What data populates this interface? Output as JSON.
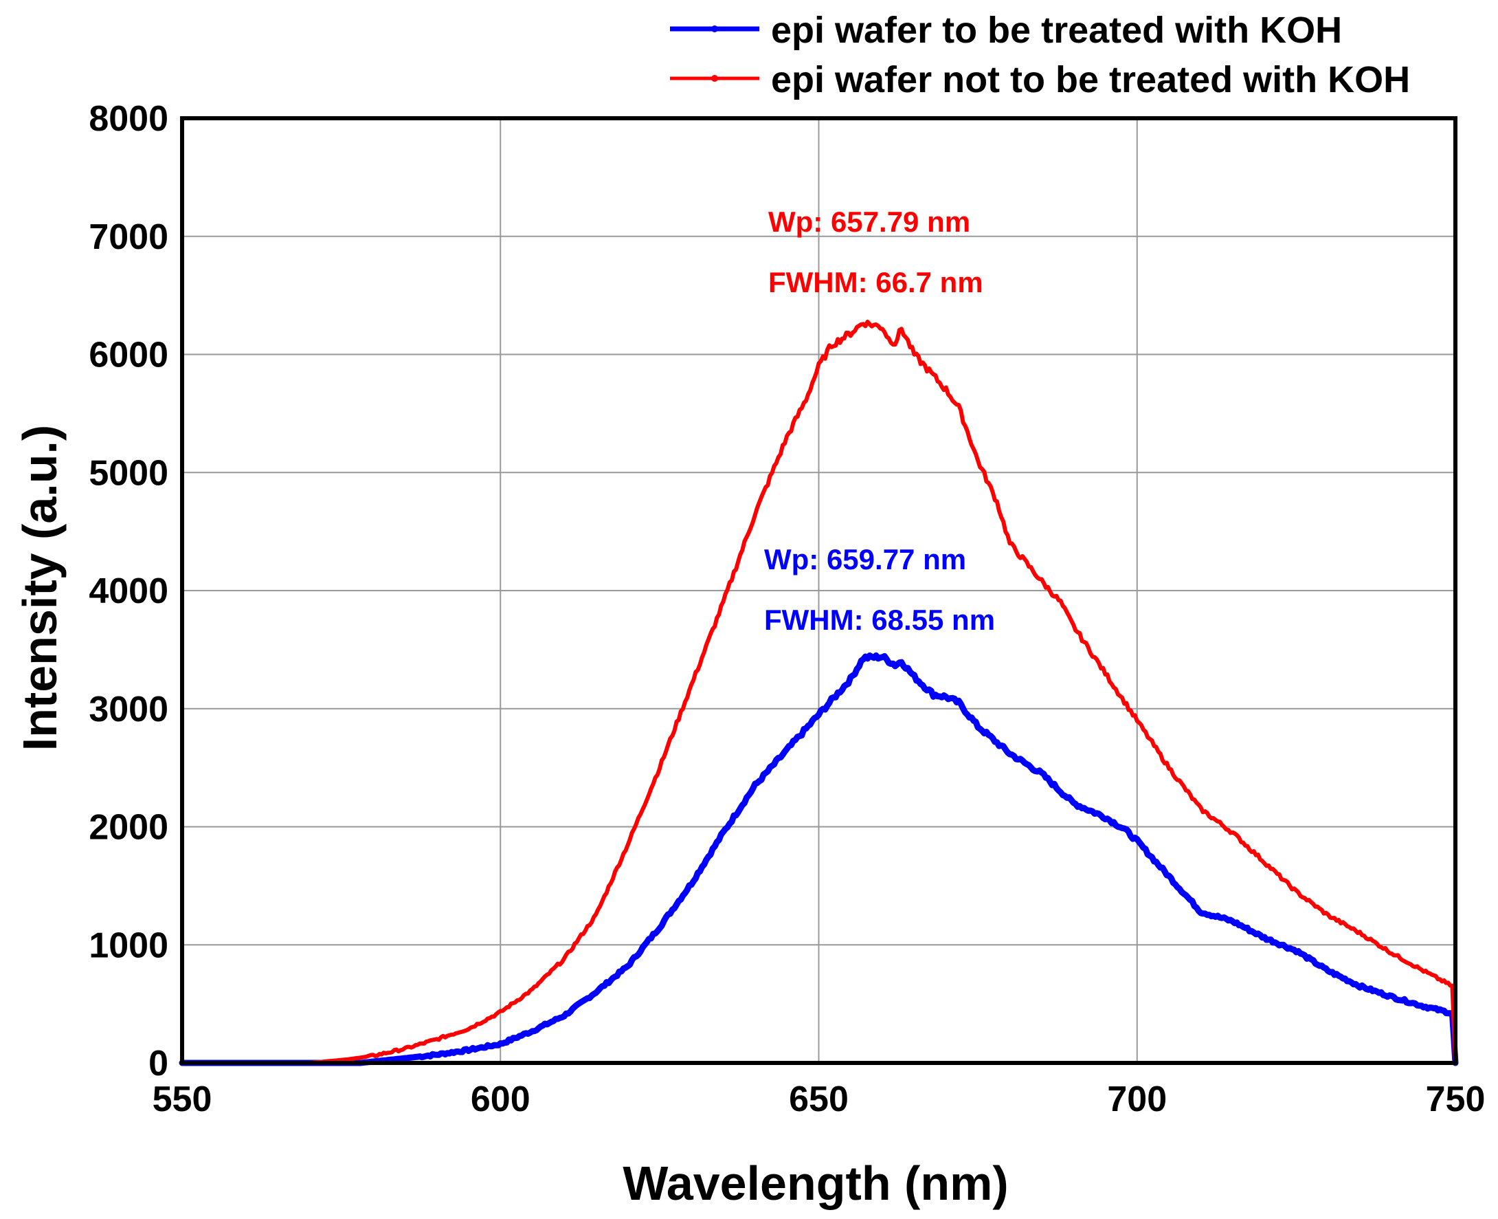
{
  "chart_data": {
    "type": "line",
    "title": "",
    "xlabel": "Wavelength (nm)",
    "ylabel": "Intensity (a.u.)",
    "xlim": [
      550,
      750
    ],
    "ylim": [
      0,
      8000
    ],
    "x_ticks": [
      550,
      600,
      650,
      700,
      750
    ],
    "y_ticks": [
      0,
      1000,
      2000,
      3000,
      4000,
      5000,
      6000,
      7000,
      8000
    ],
    "grid": true,
    "legend_position": "top-right",
    "series": [
      {
        "name": "epi wafer to be treated with KOH",
        "color": "#0000ff",
        "x": [
          550,
          570,
          578,
          585,
          590,
          595,
          600,
          605,
          610,
          615,
          620,
          625,
          630,
          635,
          640,
          645,
          650,
          655,
          657,
          660,
          662,
          663,
          665,
          668,
          670,
          672,
          675,
          680,
          685,
          690,
          695,
          698,
          700,
          705,
          710,
          715,
          720,
          725,
          730,
          735,
          740,
          745,
          749.5,
          750
        ],
        "values": [
          0,
          0,
          0,
          40,
          70,
          110,
          160,
          270,
          400,
          600,
          820,
          1150,
          1520,
          1950,
          2350,
          2650,
          2950,
          3250,
          3430,
          3440,
          3370,
          3400,
          3270,
          3120,
          3100,
          3050,
          2850,
          2620,
          2450,
          2200,
          2080,
          1980,
          1880,
          1580,
          1280,
          1200,
          1060,
          950,
          780,
          650,
          560,
          480,
          420,
          0
        ]
      },
      {
        "name": "epi wafer not to be treated with KOH",
        "color": "#ff0000",
        "x": [
          550,
          570,
          576,
          580,
          585,
          590,
          595,
          600,
          605,
          610,
          615,
          620,
          625,
          630,
          635,
          640,
          645,
          648,
          650,
          652,
          655,
          657,
          660,
          661,
          662,
          663,
          665,
          670,
          672,
          675,
          678,
          680,
          685,
          688,
          690,
          695,
          700,
          705,
          710,
          715,
          720,
          725,
          730,
          735,
          740,
          745,
          749.5,
          750
        ],
        "values": [
          0,
          0,
          30,
          60,
          120,
          200,
          290,
          430,
          620,
          880,
          1250,
          1850,
          2500,
          3200,
          3900,
          4650,
          5300,
          5620,
          5900,
          6080,
          6180,
          6270,
          6230,
          6130,
          6100,
          6220,
          6000,
          5700,
          5550,
          5100,
          4750,
          4400,
          4080,
          3900,
          3700,
          3300,
          2900,
          2500,
          2150,
          1950,
          1700,
          1450,
          1250,
          1100,
          930,
          780,
          650,
          0
        ]
      }
    ],
    "annotations": [
      {
        "series": "epi wafer not to be treated with KOH",
        "color": "#ff0000",
        "wp": "Wp: 657.79 nm",
        "fwhm": "FWHM: 66.7 nm"
      },
      {
        "series": "epi wafer to be treated with KOH",
        "color": "#0000ff",
        "wp": "Wp: 659.77 nm",
        "fwhm": "FWHM: 68.55 nm"
      }
    ]
  }
}
